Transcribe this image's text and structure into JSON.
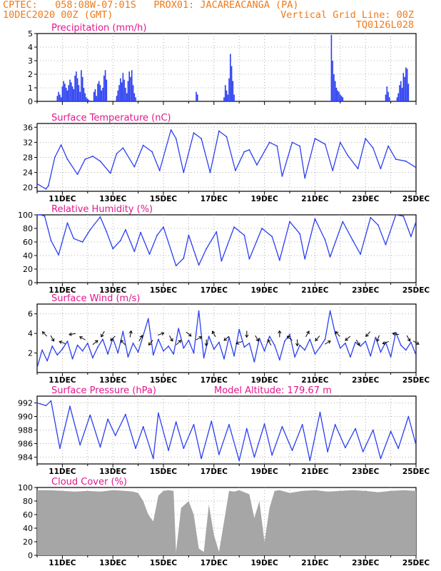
{
  "header": {
    "line1": "CPTEC:   058:08W-07:01S   PROX01: JACAREACANGA (PA)",
    "line2_left": "10DEC2020 00Z (GMT)",
    "line2_right": "Vertical Grid Line: 00Z",
    "line3_right": "TQ0126L028"
  },
  "colors": {
    "header": "#f07a1a",
    "title": "#e0188c",
    "series": "#2b3ff0",
    "cloud": "#a6a6a6",
    "arrow": "#000000"
  },
  "x_tick_labels": [
    "11DEC",
    "13DEC",
    "15DEC",
    "17DEC",
    "19DEC",
    "21DEC",
    "23DEC",
    "25DEC"
  ],
  "chart_data": [
    {
      "id": "precip",
      "type": "bar",
      "title": "Precipitation (mm/h)",
      "x_range": [
        0,
        15
      ],
      "ylim": [
        0,
        5
      ],
      "y_ticks": [
        0,
        1,
        2,
        3,
        4,
        5
      ],
      "x_ticks_shown": false,
      "x": [
        0.8,
        0.85,
        0.9,
        0.95,
        1.0,
        1.05,
        1.1,
        1.15,
        1.2,
        1.25,
        1.3,
        1.35,
        1.4,
        1.45,
        1.5,
        1.55,
        1.6,
        1.65,
        1.7,
        1.75,
        1.8,
        1.85,
        1.9,
        1.95,
        2.0,
        2.05,
        2.25,
        2.3,
        2.35,
        2.4,
        2.45,
        2.5,
        2.55,
        2.6,
        2.65,
        2.7,
        2.75,
        3.15,
        3.2,
        3.25,
        3.3,
        3.35,
        3.4,
        3.45,
        3.5,
        3.55,
        3.6,
        3.65,
        3.7,
        3.75,
        3.8,
        3.85,
        3.9,
        6.3,
        6.35,
        7.4,
        7.45,
        7.5,
        7.55,
        7.6,
        7.65,
        7.7,
        7.75,
        7.8,
        11.65,
        11.7,
        11.75,
        11.8,
        11.85,
        11.9,
        11.95,
        12.0,
        12.05,
        12.1,
        13.8,
        13.85,
        13.9,
        13.95,
        14.25,
        14.3,
        14.35,
        14.4,
        14.45,
        14.5,
        14.55,
        14.6,
        14.65,
        14.7
      ],
      "values": [
        0.4,
        0.7,
        0.5,
        0.3,
        1.1,
        1.5,
        1.3,
        1.0,
        0.8,
        1.2,
        1.6,
        1.4,
        1.1,
        0.9,
        1.9,
        2.2,
        1.7,
        1.2,
        0.7,
        2.3,
        1.8,
        1.0,
        0.6,
        0.3,
        0.2,
        0.1,
        0.7,
        0.9,
        0.4,
        1.3,
        1.5,
        1.2,
        0.8,
        1.0,
        1.9,
        2.3,
        1.6,
        0.4,
        0.8,
        1.2,
        1.7,
        1.4,
        2.1,
        1.6,
        1.0,
        0.6,
        1.5,
        2.2,
        1.8,
        2.3,
        1.2,
        0.6,
        0.3,
        0.7,
        0.5,
        0.3,
        1.2,
        0.8,
        0.5,
        1.7,
        3.5,
        2.6,
        1.5,
        0.5,
        4.9,
        3.0,
        2.0,
        1.5,
        1.0,
        0.8,
        0.7,
        0.5,
        0.4,
        0.3,
        0.5,
        1.1,
        0.7,
        0.3,
        0.3,
        0.6,
        1.2,
        1.5,
        1.0,
        2.1,
        1.8,
        2.5,
        2.4,
        1.3
      ]
    },
    {
      "id": "temp",
      "type": "line",
      "title": "Surface Temperature (nC)",
      "x_range": [
        0,
        15
      ],
      "ylim": [
        19,
        37
      ],
      "y_ticks": [
        20,
        24,
        28,
        32,
        36
      ],
      "x": [
        0,
        0.35,
        0.45,
        0.7,
        0.95,
        1.2,
        1.6,
        1.9,
        2.2,
        2.5,
        2.9,
        3.15,
        3.4,
        3.85,
        4.2,
        4.55,
        4.85,
        5.3,
        5.5,
        5.8,
        6.2,
        6.5,
        6.85,
        7.2,
        7.5,
        7.85,
        8.2,
        8.4,
        8.7,
        9.2,
        9.5,
        9.7,
        10.1,
        10.4,
        10.6,
        11.0,
        11.4,
        11.7,
        12.0,
        12.3,
        12.7,
        13.0,
        13.3,
        13.6,
        13.9,
        14.2,
        14.6,
        15.0
      ],
      "values": [
        21,
        19.6,
        20.5,
        28,
        31.3,
        27.5,
        23.5,
        27.5,
        28.3,
        27,
        23.8,
        29,
        30.5,
        25.5,
        31.2,
        29.5,
        24.5,
        35.3,
        33,
        24,
        34.5,
        33,
        24,
        35,
        33.5,
        24.5,
        29.5,
        30,
        26,
        32,
        31,
        23,
        32,
        31,
        22.5,
        33,
        31.5,
        24.5,
        32,
        28.5,
        25,
        33,
        30.5,
        25,
        31,
        27.5,
        27,
        25.3
      ]
    },
    {
      "id": "rh",
      "type": "line",
      "title": "Relative Humidity (%)",
      "x_range": [
        0,
        15
      ],
      "ylim": [
        0,
        100
      ],
      "y_ticks": [
        0,
        20,
        40,
        60,
        80,
        100
      ],
      "x": [
        0,
        0.15,
        0.3,
        0.55,
        0.85,
        1.2,
        1.45,
        1.8,
        2.1,
        2.5,
        2.75,
        3.0,
        3.3,
        3.5,
        3.85,
        4.1,
        4.45,
        4.75,
        5.0,
        5.5,
        5.8,
        6.0,
        6.4,
        6.7,
        7.1,
        7.3,
        7.8,
        8.2,
        8.4,
        8.9,
        9.3,
        9.6,
        10.0,
        10.4,
        10.6,
        11.0,
        11.4,
        11.6,
        12.1,
        12.5,
        12.8,
        13.2,
        13.5,
        13.8,
        14.2,
        14.5,
        14.8,
        15.0
      ],
      "values": [
        100,
        100,
        98,
        62,
        41,
        88,
        65,
        60,
        78,
        97,
        75,
        50,
        62,
        78,
        46,
        74,
        42,
        70,
        82,
        25,
        36,
        70,
        26,
        50,
        75,
        32,
        82,
        70,
        35,
        80,
        68,
        33,
        90,
        72,
        35,
        94,
        63,
        38,
        90,
        62,
        42,
        96,
        85,
        56,
        100,
        98,
        68,
        90
      ]
    },
    {
      "id": "wind",
      "type": "line",
      "title": "Surface Wind (m/s)",
      "x_range": [
        0,
        15
      ],
      "ylim": [
        0,
        7
      ],
      "y_ticks": [
        2,
        4,
        6
      ],
      "x": [
        0,
        0.2,
        0.4,
        0.6,
        0.8,
        1.0,
        1.2,
        1.4,
        1.6,
        1.8,
        2.0,
        2.2,
        2.4,
        2.6,
        2.8,
        3.0,
        3.2,
        3.4,
        3.6,
        3.8,
        4.0,
        4.2,
        4.4,
        4.6,
        4.8,
        5.0,
        5.2,
        5.4,
        5.6,
        5.8,
        6.0,
        6.2,
        6.4,
        6.6,
        6.8,
        7.0,
        7.2,
        7.4,
        7.6,
        7.8,
        8.0,
        8.2,
        8.4,
        8.6,
        8.8,
        9.0,
        9.2,
        9.4,
        9.6,
        9.8,
        10.0,
        10.2,
        10.4,
        10.6,
        10.8,
        11.0,
        11.2,
        11.4,
        11.6,
        11.8,
        12.0,
        12.2,
        12.4,
        12.6,
        12.8,
        13.0,
        13.2,
        13.4,
        13.6,
        13.8,
        14.0,
        14.2,
        14.4,
        14.6,
        14.8,
        15.0
      ],
      "values": [
        0.5,
        2.3,
        1.2,
        2.7,
        1.8,
        2.4,
        3.2,
        1.4,
        2.8,
        2.2,
        3.0,
        1.5,
        2.6,
        3.4,
        1.9,
        3.5,
        2.0,
        4.2,
        1.6,
        3.0,
        2.1,
        3.8,
        5.5,
        1.8,
        3.4,
        2.2,
        2.7,
        1.9,
        4.5,
        2.5,
        3.3,
        2.0,
        6.3,
        1.5,
        3.7,
        2.4,
        3.1,
        1.4,
        3.6,
        1.7,
        4.4,
        2.6,
        3.0,
        1.1,
        3.5,
        2.2,
        3.7,
        2.8,
        1.3,
        3.2,
        3.9,
        1.6,
        2.8,
        2.3,
        3.4,
        1.9,
        2.6,
        3.4,
        6.3,
        4.0,
        2.5,
        3.0,
        1.6,
        3.1,
        2.7,
        3.2,
        1.7,
        3.6,
        2.1,
        3.1,
        1.6,
        4.1,
        2.8,
        2.3,
        3.1,
        1.8
      ],
      "arrows_x": [
        0.3,
        0.6,
        1.0,
        1.4,
        1.8,
        2.3,
        2.6,
        3.0,
        3.4,
        3.7,
        4.1,
        4.5,
        4.9,
        5.3,
        5.6,
        6.0,
        6.4,
        6.7,
        7.0,
        7.5,
        8.0,
        8.3,
        8.7,
        9.2,
        9.6,
        10.0,
        10.3,
        10.7,
        11.1,
        11.5,
        11.9,
        12.3,
        12.7,
        13.1,
        13.5,
        13.8,
        14.2,
        14.7,
        15.0
      ],
      "arrows_dir_deg": [
        135,
        300,
        160,
        190,
        150,
        40,
        240,
        225,
        135,
        80,
        60,
        230,
        20,
        300,
        45,
        320,
        30,
        270,
        120,
        220,
        200,
        270,
        300,
        120,
        90,
        140,
        270,
        60,
        230,
        30,
        130,
        220,
        300,
        230,
        250,
        200,
        170,
        300,
        330
      ]
    },
    {
      "id": "pres",
      "type": "line",
      "title": "Surface Pressure (hPa)",
      "annotation": "Model Altitude: 179.67 m",
      "x_range": [
        0,
        15
      ],
      "ylim": [
        983,
        993
      ],
      "y_ticks": [
        984,
        986,
        988,
        990,
        992
      ],
      "x": [
        0,
        0.35,
        0.55,
        0.9,
        1.3,
        1.7,
        2.1,
        2.5,
        2.8,
        3.1,
        3.5,
        3.9,
        4.2,
        4.6,
        4.8,
        5.2,
        5.5,
        5.8,
        6.2,
        6.5,
        6.9,
        7.2,
        7.6,
        8.0,
        8.3,
        8.6,
        9.0,
        9.3,
        9.7,
        10.1,
        10.5,
        10.8,
        11.2,
        11.5,
        11.8,
        12.2,
        12.6,
        12.9,
        13.3,
        13.6,
        14.0,
        14.3,
        14.7,
        15.0
      ],
      "values": [
        992,
        991.6,
        992.3,
        985.3,
        991.5,
        985.8,
        990.2,
        985.5,
        989.6,
        987.2,
        990.3,
        985.3,
        988.5,
        983.8,
        990.5,
        985.0,
        989.2,
        985.3,
        988.8,
        983.8,
        989.3,
        984.4,
        988.8,
        983.5,
        988.2,
        984.0,
        988.9,
        984.3,
        988.5,
        985.0,
        988.8,
        983.5,
        990.6,
        984.8,
        988.8,
        985.4,
        988.2,
        984.8,
        988.0,
        983.8,
        987.8,
        985.3,
        990.0,
        985.8
      ]
    },
    {
      "id": "cloud",
      "type": "area",
      "title": "Cloud Cover (%)",
      "x_range": [
        0,
        15
      ],
      "ylim": [
        0,
        100
      ],
      "y_ticks": [
        0,
        20,
        40,
        60,
        80,
        100
      ],
      "x": [
        0,
        0.5,
        1.0,
        1.5,
        2.0,
        2.5,
        3.0,
        3.5,
        3.8,
        4.0,
        4.2,
        4.4,
        4.6,
        4.8,
        5.0,
        5.2,
        5.4,
        5.5,
        5.7,
        6.0,
        6.2,
        6.4,
        6.6,
        6.8,
        7.0,
        7.2,
        7.4,
        7.6,
        7.8,
        8.0,
        8.2,
        8.4,
        8.6,
        8.8,
        9.0,
        9.2,
        9.4,
        9.6,
        9.8,
        10.0,
        10.5,
        11.0,
        11.5,
        12.0,
        12.5,
        13.0,
        13.5,
        14.0,
        14.5,
        15.0
      ],
      "values": [
        96,
        96,
        95,
        94,
        95,
        94,
        96,
        95,
        94,
        92,
        80,
        60,
        50,
        88,
        95,
        96,
        95,
        5,
        70,
        80,
        60,
        10,
        5,
        75,
        30,
        5,
        50,
        95,
        94,
        96,
        93,
        90,
        55,
        80,
        20,
        70,
        95,
        96,
        94,
        92,
        95,
        96,
        94,
        95,
        96,
        95,
        93,
        95,
        96,
        95
      ]
    }
  ]
}
